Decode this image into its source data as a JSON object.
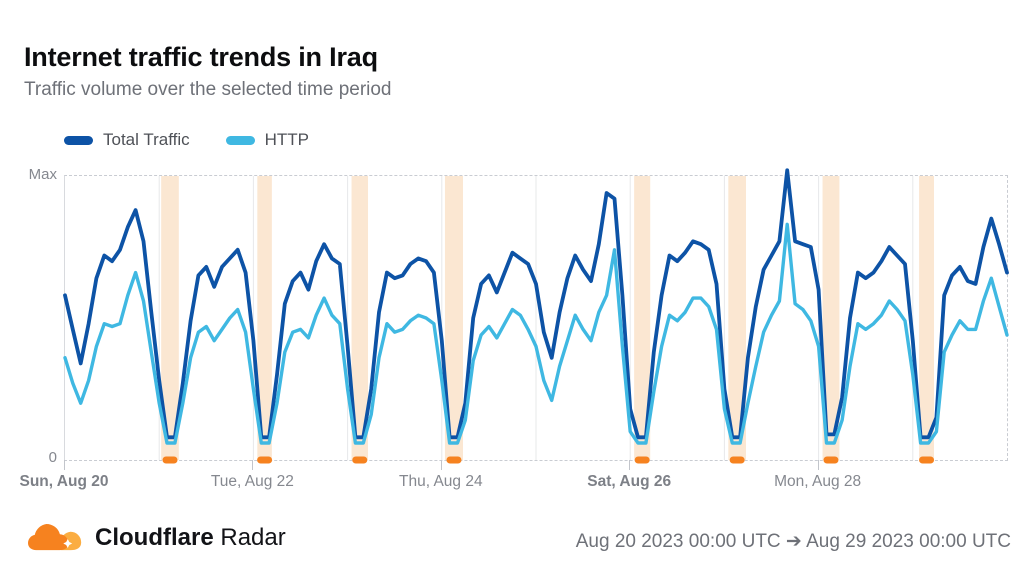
{
  "header": {
    "title": "Internet traffic trends in Iraq",
    "subtitle": "Traffic volume over the selected time period"
  },
  "legend": [
    {
      "label": "Total Traffic",
      "color": "#0D53A6"
    },
    {
      "label": "HTTP",
      "color": "#3FB8E2"
    }
  ],
  "footer": {
    "brand_bold": "Cloudflare",
    "brand_regular": "Radar",
    "date_range": "Aug 20 2023 00:00 UTC ➔ Aug 29 2023 00:00 UTC",
    "logo": {
      "main": "#F6821F",
      "light": "#FBAD41"
    }
  },
  "chart_data": {
    "type": "line",
    "title": "Internet traffic trends in Iraq",
    "x_unit": "hours since Aug 20 2023 00:00 UTC",
    "x_range_hours": [
      0,
      240
    ],
    "ylim": [
      0,
      100
    ],
    "yticks": [
      "Max",
      "0"
    ],
    "grid": "vertical gridlines at each midnight, dashed top/bottom frame",
    "gridline_hours": [
      24,
      48,
      72,
      96,
      120,
      144,
      168,
      192,
      216
    ],
    "xticks": [
      {
        "hour": 0,
        "label": "Sun, Aug 20",
        "bold": true
      },
      {
        "hour": 48,
        "label": "Tue, Aug 22",
        "bold": false
      },
      {
        "hour": 96,
        "label": "Thu, Aug 24",
        "bold": false
      },
      {
        "hour": 144,
        "label": "Sat, Aug 26",
        "bold": true
      },
      {
        "hour": 192,
        "label": "Mon, Aug 28",
        "bold": false
      }
    ],
    "anomaly_bands": {
      "fill": "#FBE7D2",
      "marker_color": "#F6821F",
      "ranges_hours": [
        [
          24.5,
          29.0
        ],
        [
          49.0,
          52.7
        ],
        [
          73.0,
          77.2
        ],
        [
          96.8,
          101.4
        ],
        [
          145.0,
          149.1
        ],
        [
          169.0,
          173.5
        ],
        [
          193.0,
          197.3
        ],
        [
          217.6,
          221.4
        ]
      ]
    },
    "series": [
      {
        "name": "Total Traffic",
        "color": "#0D53A6",
        "x_step_hours": 2,
        "values": [
          58,
          46,
          34,
          48,
          64,
          72,
          70,
          74,
          82,
          88,
          77,
          52,
          28,
          8,
          8,
          27,
          49,
          65,
          68,
          61,
          68,
          71,
          74,
          66,
          42,
          8,
          8,
          30,
          55,
          63,
          66,
          60,
          70,
          76,
          71,
          69,
          40,
          8,
          8,
          25,
          52,
          66,
          64,
          65,
          69,
          71,
          70,
          66,
          42,
          8,
          8,
          20,
          50,
          62,
          65,
          59,
          66,
          73,
          71,
          69,
          62,
          45,
          36,
          52,
          64,
          72,
          67,
          63,
          76,
          94,
          92,
          58,
          18,
          8,
          8,
          38,
          58,
          72,
          70,
          73,
          77,
          76,
          74,
          62,
          25,
          8,
          8,
          36,
          54,
          67,
          72,
          77,
          102,
          77,
          76,
          75,
          60,
          9,
          9,
          22,
          50,
          66,
          64,
          66,
          70,
          75,
          72,
          69,
          42,
          8,
          8,
          15,
          58,
          65,
          68,
          63,
          62,
          75,
          85,
          76,
          66
        ]
      },
      {
        "name": "HTTP",
        "color": "#3FB8E2",
        "x_step_hours": 2,
        "values": [
          36,
          27,
          20,
          28,
          40,
          48,
          47,
          48,
          58,
          66,
          56,
          38,
          20,
          6,
          6,
          20,
          36,
          45,
          47,
          42,
          46,
          50,
          53,
          45,
          25,
          6,
          6,
          20,
          38,
          45,
          46,
          43,
          51,
          57,
          51,
          48,
          25,
          6,
          6,
          16,
          36,
          48,
          45,
          46,
          49,
          51,
          50,
          48,
          28,
          6,
          6,
          14,
          35,
          44,
          47,
          43,
          48,
          53,
          51,
          46,
          40,
          28,
          21,
          33,
          42,
          51,
          46,
          42,
          52,
          58,
          74,
          40,
          10,
          6,
          6,
          24,
          40,
          51,
          49,
          52,
          57,
          57,
          54,
          46,
          18,
          6,
          6,
          20,
          33,
          45,
          51,
          56,
          83,
          55,
          53,
          49,
          40,
          6,
          6,
          14,
          33,
          48,
          46,
          48,
          51,
          56,
          53,
          49,
          30,
          6,
          6,
          10,
          38,
          44,
          49,
          46,
          46,
          56,
          64,
          54,
          44
        ]
      }
    ]
  }
}
